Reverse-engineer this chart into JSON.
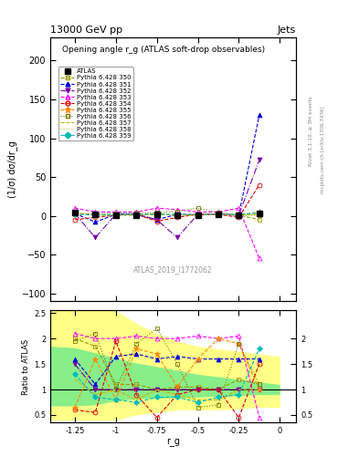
{
  "title_top": "13000 GeV pp",
  "title_right": "Jets",
  "plot_title": "Opening angle r_g (ATLAS soft-drop observables)",
  "ylabel_main": "(1/σ) dσ/dr_g",
  "ylabel_ratio": "Ratio to ATLAS",
  "xlabel": "r_g",
  "watermark": "ATLAS_2019_I1772062",
  "rivet_text": "Rivet 3.1.10, ≥ 3M events",
  "mcplots_text": "mcplots.cern.ch [arXiv:1306.3436]",
  "xlim": [
    -1.4,
    0.1
  ],
  "ylim_main": [
    -110,
    230
  ],
  "ylim_ratio": [
    0.35,
    2.55
  ],
  "yticks_main": [
    -100,
    -50,
    0,
    50,
    100,
    150,
    200
  ],
  "xticks": [
    -1.25,
    -1.0,
    -0.75,
    -0.5,
    -0.25,
    0.0
  ],
  "xticklabels_ratio": [
    "-1.25",
    "-1",
    "-0.75",
    "-0.5",
    "-0.25",
    "0"
  ],
  "atlas_data": {
    "x": [
      -1.25,
      -1.125,
      -1.0,
      -0.875,
      -0.75,
      -0.625,
      -0.5,
      -0.375,
      -0.25,
      -0.125
    ],
    "y": [
      4,
      2,
      1,
      1,
      2,
      1,
      1,
      2,
      1,
      3
    ],
    "yerr": [
      2,
      1.5,
      1,
      1,
      1.5,
      1,
      1,
      1.5,
      1,
      1.5
    ],
    "color": "#000000",
    "marker": "s",
    "markersize": 4,
    "label": "ATLAS"
  },
  "mc_series": [
    {
      "label": "Pythia 6.428 350",
      "color": "#999900",
      "marker": "s",
      "markerfacecolor": "none",
      "linestyle": "--",
      "x": [
        -1.25,
        -1.125,
        -1.0,
        -0.875,
        -0.75,
        -0.625,
        -0.5,
        -0.375,
        -0.25,
        -0.125
      ],
      "y": [
        3,
        2,
        1,
        1,
        2,
        1,
        2,
        2,
        1,
        -5
      ],
      "ratio": [
        2.0,
        1.85,
        1.1,
        1.1,
        1.0,
        1.05,
        1.05,
        1.0,
        1.2,
        1.1
      ]
    },
    {
      "label": "Pythia 6.428 351",
      "color": "#0000DD",
      "marker": "^",
      "markerfacecolor": "#0000DD",
      "linestyle": "--",
      "x": [
        -1.25,
        -1.125,
        -1.0,
        -0.875,
        -0.75,
        -0.625,
        -0.5,
        -0.375,
        -0.25,
        -0.125
      ],
      "y": [
        3,
        -8,
        2,
        2,
        -5,
        2,
        1,
        2,
        1,
        130
      ],
      "ratio": [
        1.6,
        1.1,
        1.65,
        1.7,
        1.6,
        1.65,
        1.6,
        1.6,
        1.6,
        1.6
      ]
    },
    {
      "label": "Pythia 6.428 352",
      "color": "#7700AA",
      "marker": "v",
      "markerfacecolor": "#7700AA",
      "linestyle": "-.",
      "x": [
        -1.25,
        -1.125,
        -1.0,
        -0.875,
        -0.75,
        -0.625,
        -0.5,
        -0.375,
        -0.25,
        -0.125
      ],
      "y": [
        3,
        -28,
        2,
        2,
        -5,
        -28,
        2,
        2,
        1,
        72
      ],
      "ratio": [
        1.5,
        1.0,
        1.0,
        1.0,
        1.0,
        1.0,
        1.0,
        1.0,
        1.0,
        1.0
      ]
    },
    {
      "label": "Pythia 6.428 353",
      "color": "#FF00FF",
      "marker": "^",
      "markerfacecolor": "none",
      "linestyle": "--",
      "x": [
        -1.25,
        -1.125,
        -1.0,
        -0.875,
        -0.75,
        -0.625,
        -0.5,
        -0.375,
        -0.25,
        -0.125
      ],
      "y": [
        10,
        5,
        5,
        5,
        10,
        8,
        5,
        5,
        10,
        -55
      ],
      "ratio": [
        2.1,
        2.0,
        2.0,
        2.05,
        2.0,
        2.0,
        2.05,
        2.0,
        2.05,
        0.45
      ]
    },
    {
      "label": "Pythia 6.428 354",
      "color": "#DD0000",
      "marker": "o",
      "markerfacecolor": "none",
      "linestyle": "--",
      "x": [
        -1.25,
        -1.125,
        -1.0,
        -0.875,
        -0.75,
        -0.625,
        -0.5,
        -0.375,
        -0.25,
        -0.125
      ],
      "y": [
        -5,
        -2,
        1,
        2,
        -7,
        -2,
        2,
        2,
        -2,
        40
      ],
      "ratio": [
        0.6,
        0.55,
        1.95,
        0.9,
        0.45,
        0.9,
        1.0,
        1.0,
        0.45,
        1.5
      ]
    },
    {
      "label": "Pythia 6.428 355",
      "color": "#FF8800",
      "marker": "*",
      "markerfacecolor": "#FF8800",
      "linestyle": "--",
      "x": [
        -1.25,
        -1.125,
        -1.0,
        -0.875,
        -0.75,
        -0.625,
        -0.5,
        -0.375,
        -0.25,
        -0.125
      ],
      "y": [
        3,
        1,
        1,
        2,
        2,
        1,
        2,
        2,
        1,
        5
      ],
      "ratio": [
        0.65,
        1.6,
        0.8,
        1.8,
        1.7,
        1.05,
        1.6,
        2.0,
        1.9,
        1.0
      ]
    },
    {
      "label": "Pythia 6.428 356",
      "color": "#777700",
      "marker": "s",
      "markerfacecolor": "none",
      "linestyle": ":",
      "x": [
        -1.25,
        -1.125,
        -1.0,
        -0.875,
        -0.75,
        -0.625,
        -0.5,
        -0.375,
        -0.25,
        -0.125
      ],
      "y": [
        3,
        3,
        3,
        4,
        4,
        6,
        10,
        4,
        1,
        1
      ],
      "ratio": [
        1.95,
        2.1,
        1.0,
        1.9,
        2.2,
        1.5,
        0.65,
        0.7,
        1.9,
        1.1
      ]
    },
    {
      "label": "Pythia 6.428 357",
      "color": "#BBBB00",
      "marker": null,
      "markerfacecolor": null,
      "linestyle": "--",
      "x": [
        -1.25,
        -1.125,
        -1.0,
        -0.875,
        -0.75,
        -0.625,
        -0.5,
        -0.375,
        -0.25,
        -0.125
      ],
      "y": [
        3,
        1,
        1,
        1,
        2,
        1,
        1,
        2,
        1,
        2
      ],
      "ratio": [
        1.2,
        0.9,
        1.0,
        0.8,
        1.0,
        0.9,
        0.8,
        0.8,
        1.0,
        1.0
      ]
    },
    {
      "label": "Pythia 6.428 358",
      "color": "#CCCC44",
      "marker": null,
      "markerfacecolor": null,
      "linestyle": ":",
      "x": [
        -1.25,
        -1.125,
        -1.0,
        -0.875,
        -0.75,
        -0.625,
        -0.5,
        -0.375,
        -0.25,
        -0.125
      ],
      "y": [
        3,
        1,
        1,
        1,
        2,
        1,
        1,
        2,
        1,
        2
      ],
      "ratio": [
        1.2,
        0.88,
        0.98,
        0.78,
        0.98,
        0.88,
        0.78,
        0.78,
        0.95,
        0.98
      ]
    },
    {
      "label": "Pythia 6.428 359",
      "color": "#00BBBB",
      "marker": "D",
      "markerfacecolor": "#00BBBB",
      "linestyle": "--",
      "x": [
        -1.25,
        -1.125,
        -1.0,
        -0.875,
        -0.75,
        -0.625,
        -0.5,
        -0.375,
        -0.25,
        -0.125
      ],
      "y": [
        2,
        1,
        2,
        2,
        2,
        2,
        2,
        2,
        2,
        4
      ],
      "ratio": [
        1.3,
        0.85,
        0.8,
        0.75,
        0.85,
        0.85,
        0.75,
        0.85,
        0.9,
        1.8
      ]
    }
  ],
  "ratio_band_yellow": {
    "x": [
      -1.4,
      -1.25,
      -1.125,
      -1.0,
      -0.875,
      -0.75,
      -0.625,
      -0.5,
      -0.375,
      -0.25,
      -0.125,
      0.0
    ],
    "low": [
      0.4,
      0.4,
      0.4,
      0.4,
      0.5,
      0.55,
      0.6,
      0.6,
      0.6,
      0.62,
      0.65,
      0.65
    ],
    "high": [
      2.55,
      2.55,
      2.55,
      2.55,
      2.3,
      2.1,
      1.95,
      1.85,
      1.8,
      1.75,
      1.7,
      1.65
    ]
  },
  "ratio_band_green": {
    "x": [
      -1.4,
      -1.25,
      -1.125,
      -1.0,
      -0.875,
      -0.75,
      -0.625,
      -0.5,
      -0.375,
      -0.25,
      -0.125,
      0.0
    ],
    "low": [
      0.68,
      0.68,
      0.7,
      0.78,
      0.82,
      0.83,
      0.84,
      0.85,
      0.87,
      0.88,
      0.9,
      0.9
    ],
    "high": [
      1.85,
      1.82,
      1.72,
      1.62,
      1.52,
      1.45,
      1.38,
      1.3,
      1.25,
      1.2,
      1.15,
      1.1
    ]
  }
}
